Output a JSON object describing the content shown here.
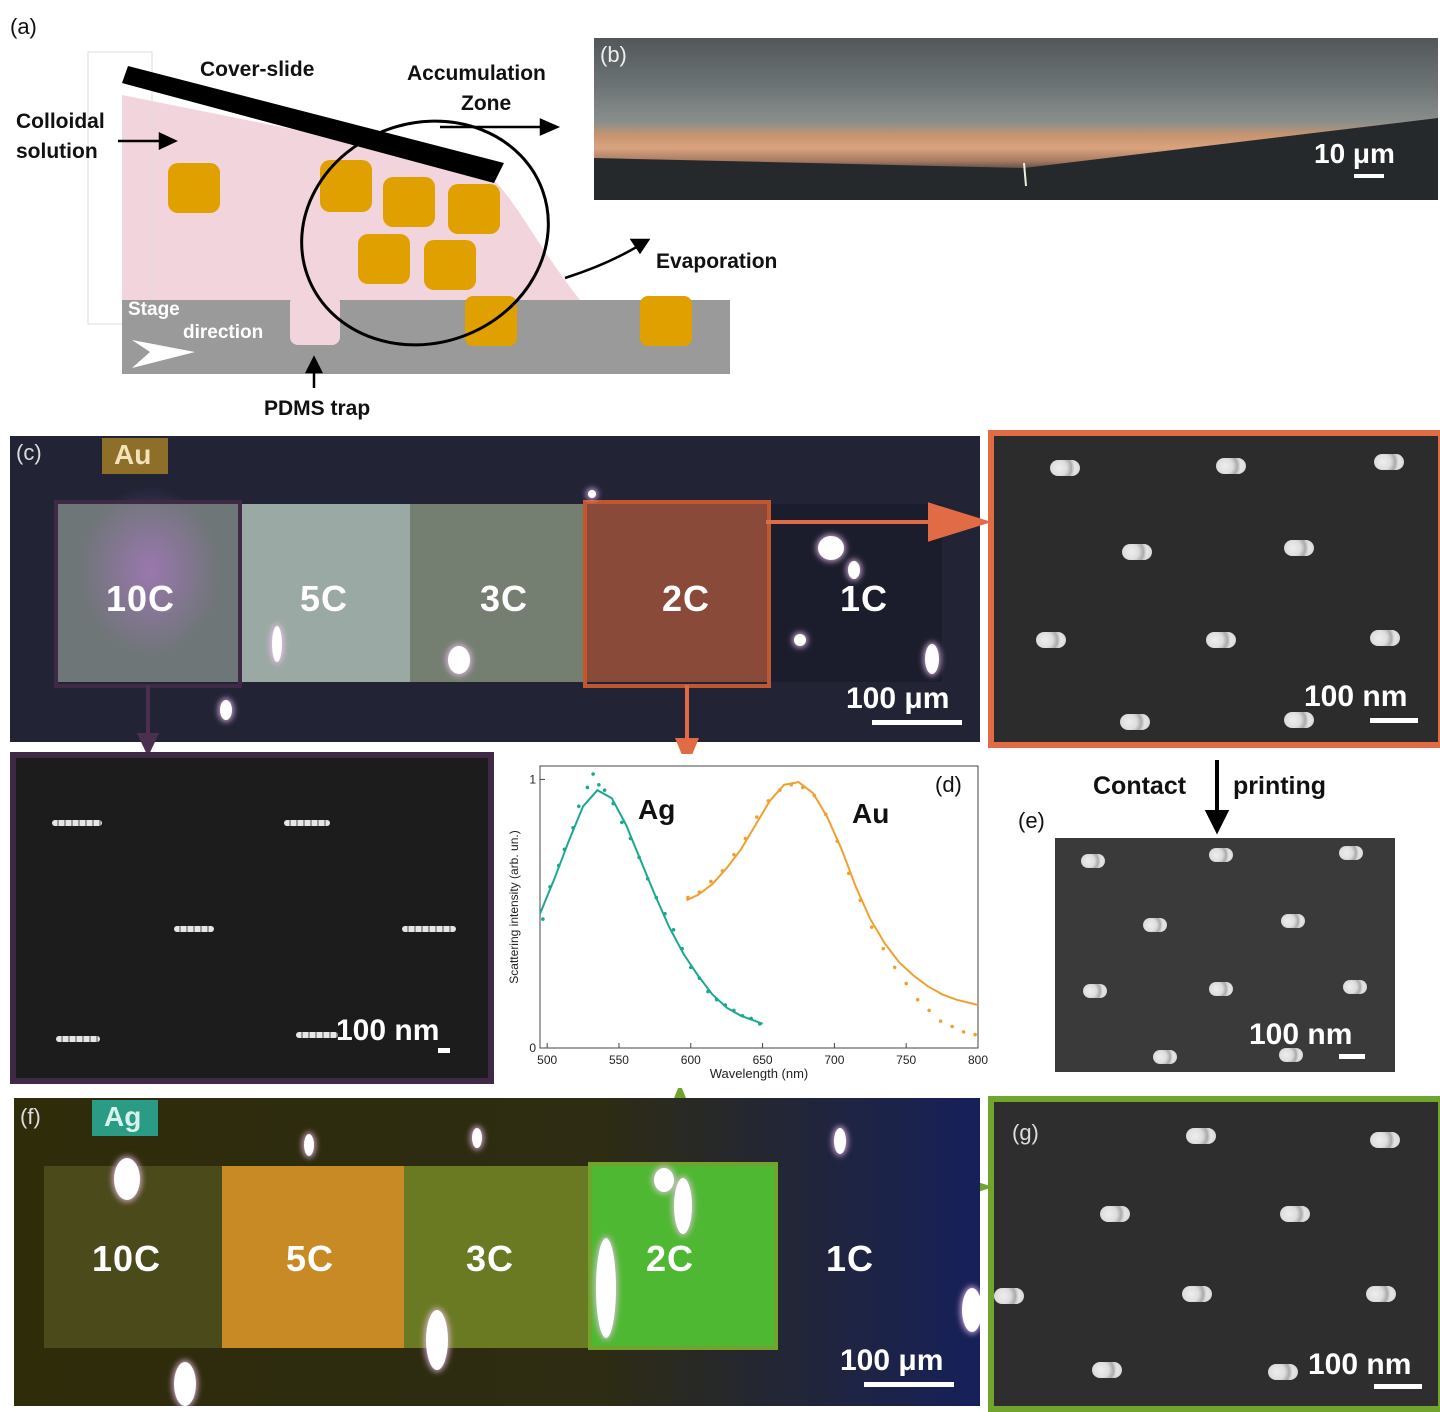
{
  "panels": {
    "a": "(a)",
    "b": "(b)",
    "c": "(c)",
    "d": "(d)",
    "e": "(e)",
    "f": "(f)",
    "g": "(g)"
  },
  "schematic": {
    "cover_slide": "Cover-slide",
    "accumulation_zone_1": "Accumulation",
    "accumulation_zone_2": "Zone",
    "colloidal_1": "Colloidal",
    "colloidal_2": "solution",
    "evaporation": "Evaporation",
    "stage": "Stage",
    "direction": "direction",
    "pdms_trap": "PDMS trap"
  },
  "panel_b": {
    "scale": "10 μm"
  },
  "panel_c": {
    "material": "Au",
    "regions": [
      "10C",
      "5C",
      "3C",
      "2C",
      "1C"
    ],
    "scale": "100 μm"
  },
  "sem_c_right": {
    "scale": "100 nm"
  },
  "sem_c_left": {
    "scale": "100 nm"
  },
  "sem_e": {
    "scale": "100 nm"
  },
  "contact_printing": {
    "left": "Contact",
    "right": "printing"
  },
  "panel_f": {
    "material": "Ag",
    "regions": [
      "10C",
      "5C",
      "3C",
      "2C",
      "1C"
    ],
    "scale": "100 μm"
  },
  "sem_g": {
    "scale": "100 nm"
  },
  "colors": {
    "au_panel": "#c0572f",
    "c_left_panel": "#3f2a45",
    "ag_panel": "#73a32f",
    "ag_series": "#1aa98f",
    "au_series": "#f0a030"
  },
  "chart_data": {
    "type": "line",
    "xlabel": "Wavelength (nm)",
    "ylabel": "Scattering intensity (arb. un.)",
    "xlim": [
      495,
      800
    ],
    "ylim": [
      0,
      1.05
    ],
    "xticks": [
      500,
      550,
      600,
      650,
      700,
      750,
      800
    ],
    "yticks": [
      0,
      1
    ],
    "series": [
      {
        "name": "Ag",
        "color": "#1aa98f",
        "fit": [
          [
            495,
            0.5
          ],
          [
            505,
            0.63
          ],
          [
            515,
            0.77
          ],
          [
            525,
            0.9
          ],
          [
            535,
            0.96
          ],
          [
            545,
            0.93
          ],
          [
            555,
            0.83
          ],
          [
            565,
            0.7
          ],
          [
            575,
            0.57
          ],
          [
            585,
            0.45
          ],
          [
            595,
            0.35
          ],
          [
            605,
            0.27
          ],
          [
            615,
            0.2
          ],
          [
            625,
            0.15
          ],
          [
            635,
            0.12
          ],
          [
            645,
            0.1
          ],
          [
            650,
            0.09
          ]
        ],
        "measured": [
          [
            497,
            0.48
          ],
          [
            502,
            0.6
          ],
          [
            508,
            0.68
          ],
          [
            512,
            0.74
          ],
          [
            518,
            0.82
          ],
          [
            522,
            0.9
          ],
          [
            528,
            0.97
          ],
          [
            532,
            1.02
          ],
          [
            536,
            0.98
          ],
          [
            540,
            0.96
          ],
          [
            546,
            0.91
          ],
          [
            552,
            0.84
          ],
          [
            558,
            0.78
          ],
          [
            564,
            0.71
          ],
          [
            570,
            0.63
          ],
          [
            576,
            0.56
          ],
          [
            582,
            0.5
          ],
          [
            588,
            0.44
          ],
          [
            594,
            0.37
          ],
          [
            600,
            0.3
          ],
          [
            606,
            0.26
          ],
          [
            612,
            0.21
          ],
          [
            618,
            0.18
          ],
          [
            624,
            0.16
          ],
          [
            630,
            0.14
          ],
          [
            636,
            0.12
          ],
          [
            642,
            0.11
          ],
          [
            648,
            0.09
          ]
        ]
      },
      {
        "name": "Au",
        "color": "#f0a030",
        "fit": [
          [
            597,
            0.55
          ],
          [
            605,
            0.57
          ],
          [
            615,
            0.61
          ],
          [
            625,
            0.67
          ],
          [
            635,
            0.74
          ],
          [
            645,
            0.83
          ],
          [
            655,
            0.92
          ],
          [
            665,
            0.98
          ],
          [
            675,
            0.99
          ],
          [
            685,
            0.95
          ],
          [
            695,
            0.86
          ],
          [
            705,
            0.74
          ],
          [
            715,
            0.6
          ],
          [
            725,
            0.48
          ],
          [
            735,
            0.39
          ],
          [
            745,
            0.32
          ],
          [
            755,
            0.27
          ],
          [
            765,
            0.23
          ],
          [
            775,
            0.2
          ],
          [
            785,
            0.18
          ],
          [
            800,
            0.16
          ]
        ],
        "measured": [
          [
            598,
            0.56
          ],
          [
            606,
            0.58
          ],
          [
            614,
            0.62
          ],
          [
            622,
            0.66
          ],
          [
            630,
            0.72
          ],
          [
            638,
            0.78
          ],
          [
            646,
            0.86
          ],
          [
            654,
            0.92
          ],
          [
            662,
            0.96
          ],
          [
            670,
            0.98
          ],
          [
            678,
            0.97
          ],
          [
            686,
            0.94
          ],
          [
            694,
            0.87
          ],
          [
            702,
            0.77
          ],
          [
            710,
            0.65
          ],
          [
            718,
            0.55
          ],
          [
            726,
            0.45
          ],
          [
            734,
            0.37
          ],
          [
            742,
            0.3
          ],
          [
            750,
            0.24
          ],
          [
            758,
            0.18
          ],
          [
            766,
            0.14
          ],
          [
            774,
            0.1
          ],
          [
            782,
            0.08
          ],
          [
            790,
            0.06
          ],
          [
            798,
            0.05
          ]
        ]
      }
    ]
  }
}
